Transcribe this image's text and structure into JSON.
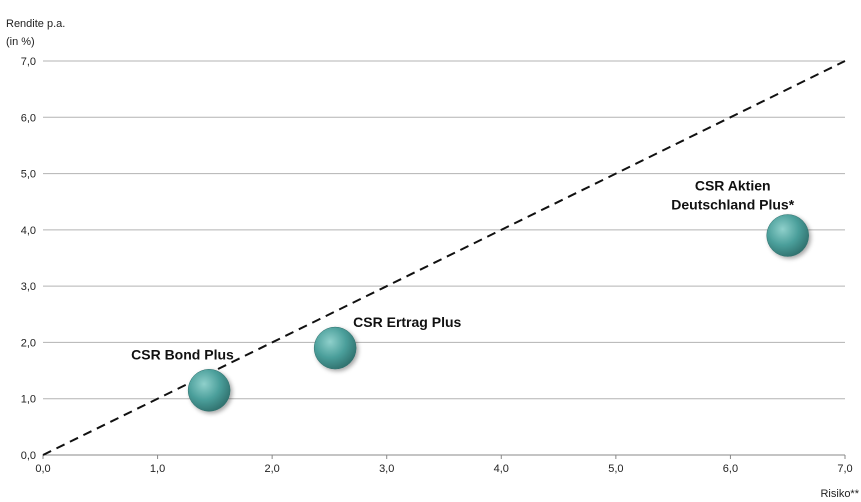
{
  "chart_data": {
    "type": "scatter",
    "ylabel": [
      "Rendite p.a.",
      "(in %)"
    ],
    "xlabel": "Risiko**",
    "xlim": [
      0,
      7
    ],
    "ylim": [
      0,
      7
    ],
    "x_ticks": [
      "0,0",
      "1,0",
      "2,0",
      "3,0",
      "4,0",
      "5,0",
      "6,0",
      "7,0"
    ],
    "y_ticks": [
      "0,0",
      "1,0",
      "2,0",
      "3,0",
      "4,0",
      "5,0",
      "6,0",
      "7,0"
    ],
    "grid": "horizontal",
    "reference_line": {
      "style": "dashed",
      "from": [
        0,
        0
      ],
      "to": [
        7,
        7
      ]
    },
    "marker_color": "#4a9e9a",
    "points": [
      {
        "label": [
          "CSR Bond Plus"
        ],
        "x": 1.45,
        "y": 1.15
      },
      {
        "label": [
          "CSR Ertrag Plus"
        ],
        "x": 2.55,
        "y": 1.9
      },
      {
        "label": [
          "CSR Aktien",
          "Deutschland Plus*"
        ],
        "x": 6.5,
        "y": 3.9
      }
    ]
  }
}
